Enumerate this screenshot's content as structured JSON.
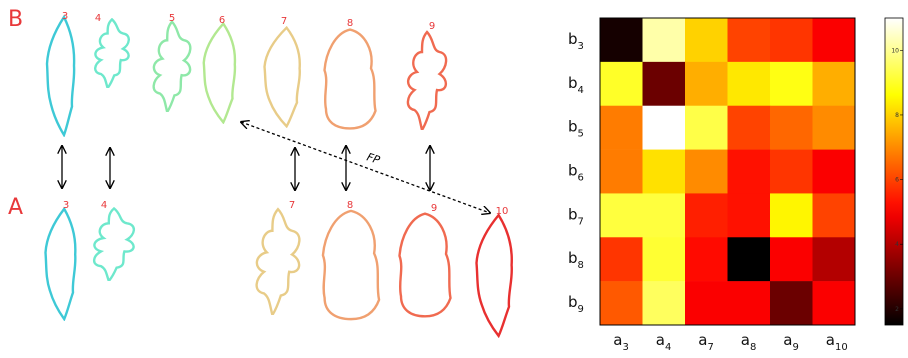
{
  "panel_labels": {
    "top": "B",
    "bottom": "A",
    "fp": "FP"
  },
  "leaves": {
    "top": [
      "3",
      "4",
      "5",
      "6",
      "7",
      "8",
      "9"
    ],
    "bottom": [
      "3",
      "4",
      "7",
      "8",
      "9",
      "10"
    ]
  },
  "heatmap": {
    "rows": [
      {
        "base": "b",
        "sub": "3"
      },
      {
        "base": "b",
        "sub": "4"
      },
      {
        "base": "b",
        "sub": "5"
      },
      {
        "base": "b",
        "sub": "6"
      },
      {
        "base": "b",
        "sub": "7"
      },
      {
        "base": "b",
        "sub": "8"
      },
      {
        "base": "b",
        "sub": "9"
      }
    ],
    "cols": [
      {
        "base": "a",
        "sub": "3"
      },
      {
        "base": "a",
        "sub": "4"
      },
      {
        "base": "a",
        "sub": "7"
      },
      {
        "base": "a",
        "sub": "8"
      },
      {
        "base": "a",
        "sub": "9"
      },
      {
        "base": "a",
        "sub": "10"
      }
    ],
    "values": [
      [
        1.8,
        10.2,
        8.0,
        6.0,
        5.8,
        5.0
      ],
      [
        9.0,
        3.0,
        7.5,
        8.3,
        8.8,
        7.5
      ],
      [
        6.8,
        11.0,
        9.3,
        6.0,
        6.5,
        7.0
      ],
      [
        6.8,
        8.2,
        7.0,
        5.3,
        5.8,
        5.0
      ],
      [
        9.2,
        9.2,
        5.5,
        5.3,
        8.5,
        6.0
      ],
      [
        5.8,
        9.1,
        5.2,
        1.5,
        5.0,
        4.0
      ],
      [
        6.3,
        9.5,
        5.0,
        5.0,
        3.0,
        5.0
      ]
    ],
    "colormap": "hot",
    "clim": [
      1.5,
      11
    ],
    "cticks": [
      2,
      4,
      6,
      8,
      10
    ]
  }
}
